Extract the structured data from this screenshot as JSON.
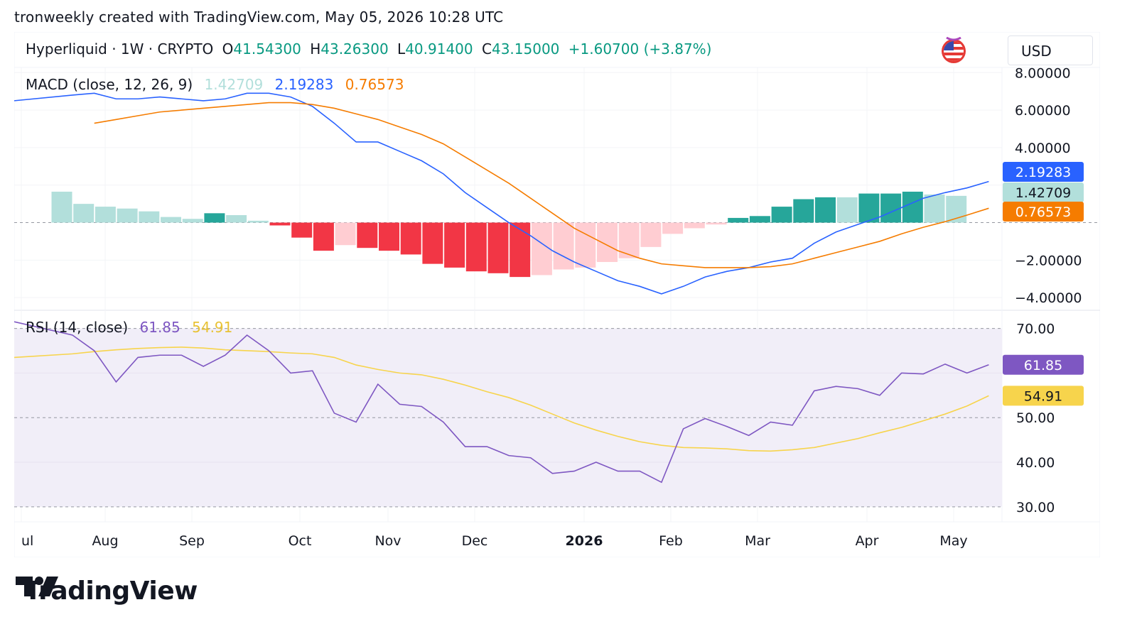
{
  "credit": "tronweekly created with TradingView.com, May 05, 2026 10:28 UTC",
  "header": {
    "symbol": "Hyperliquid · 1W · CRYPTO",
    "open_label": "O",
    "open": "41.54300",
    "high_label": "H",
    "high": "43.26300",
    "low_label": "L",
    "low": "40.91400",
    "close_label": "C",
    "close": "43.15000",
    "change": "+1.60700 (+3.87%)"
  },
  "currency": "USD",
  "flag_icon": "us-flag-icon",
  "brand": "TradingView",
  "colors": {
    "macd_line": "#2962ff",
    "signal_line": "#f57c00",
    "hist_pos_strong": "#26a69a",
    "hist_pos_weak": "#b2dfdb",
    "hist_neg_strong": "#f23645",
    "hist_neg_weak": "#ffcdd2",
    "rsi_line": "#7e57c2",
    "rsi_ma": "#f7d44c",
    "rsi_band": "#f1eef8",
    "up": "#089981"
  },
  "chart_data": [
    {
      "type": "line",
      "title": "MACD (close, 12, 26, 9)",
      "legend_values": {
        "histogram": "1.42709",
        "macd": "2.19283",
        "signal": "0.76573"
      },
      "x_labels": [
        "ul",
        "Aug",
        "Sep",
        "Oct",
        "Nov",
        "Dec",
        "2026",
        "Feb",
        "Mar",
        "Apr",
        "May"
      ],
      "y_ticks": [
        "8.00000",
        "6.00000",
        "4.00000",
        "−2.00000",
        "−4.00000"
      ],
      "y_tick_values": [
        8,
        6,
        4,
        -2,
        -4
      ],
      "ylim": [
        -4.6,
        8.2
      ],
      "macd": [
        6.5,
        6.8,
        6.9,
        6.6,
        6.6,
        6.7,
        6.6,
        6.5,
        6.6,
        6.9,
        6.9,
        6.7,
        6.2,
        5.3,
        4.3,
        4.3,
        3.8,
        3.3,
        2.6,
        1.6,
        0.8,
        0.0,
        -0.7,
        -1.5,
        -2.1,
        -2.6,
        -3.1,
        -3.4,
        -3.8,
        -3.4,
        -2.9,
        -2.6,
        -2.4,
        -2.1,
        -1.9,
        -1.1,
        -0.5,
        -0.1,
        0.3,
        0.8,
        1.3,
        1.6,
        1.85,
        2.19283
      ],
      "signal": [
        null,
        null,
        5.3,
        5.5,
        5.7,
        5.9,
        6.0,
        6.1,
        6.2,
        6.3,
        6.4,
        6.4,
        6.3,
        6.1,
        5.8,
        5.5,
        5.1,
        4.7,
        4.2,
        3.5,
        2.8,
        2.1,
        1.3,
        0.5,
        -0.3,
        -0.9,
        -1.5,
        -1.9,
        -2.2,
        -2.3,
        -2.4,
        -2.4,
        -2.4,
        -2.35,
        -2.2,
        -1.9,
        -1.6,
        -1.3,
        -1.0,
        -0.6,
        -0.25,
        0.05,
        0.4,
        0.76573
      ],
      "histogram": [
        1.65,
        1.0,
        0.85,
        0.75,
        0.6,
        0.3,
        0.2,
        0.5,
        0.4,
        0.1,
        -0.15,
        -0.8,
        -1.5,
        -1.2,
        -1.35,
        -1.5,
        -1.7,
        -2.2,
        -2.4,
        -2.6,
        -2.7,
        -2.9,
        -2.8,
        -2.5,
        -2.4,
        -2.1,
        -1.9,
        -1.3,
        -0.6,
        -0.3,
        -0.1,
        0.25,
        0.35,
        0.85,
        1.25,
        1.35,
        1.35,
        1.55,
        1.55,
        1.65,
        1.5,
        1.42709
      ],
      "histogram_colors": [
        "w",
        "w",
        "w",
        "w",
        "w",
        "w",
        "w",
        "s",
        "w",
        "w",
        "s",
        "s",
        "s",
        "w",
        "s",
        "s",
        "s",
        "s",
        "s",
        "s",
        "s",
        "s",
        "w",
        "w",
        "w",
        "w",
        "w",
        "w",
        "w",
        "w",
        "w",
        "s",
        "s",
        "s",
        "s",
        "s",
        "w",
        "s",
        "s",
        "s",
        "w",
        "w"
      ]
    },
    {
      "type": "line",
      "title": "RSI (14, close)",
      "legend_values": {
        "rsi": "61.85",
        "ma": "54.91"
      },
      "y_ticks": [
        "70.00",
        "50.00",
        "40.00",
        "30.00"
      ],
      "y_tick_values": [
        70,
        50,
        40,
        30
      ],
      "ylim": [
        29.5,
        72
      ],
      "band": [
        30,
        70
      ],
      "rsi": [
        71.5,
        68.5,
        65,
        58,
        63.5,
        64,
        64,
        61.5,
        64,
        68.5,
        65,
        60,
        60.5,
        51,
        49,
        57.5,
        53,
        52.5,
        49,
        43.5,
        43.5,
        41.5,
        41,
        37.5,
        38,
        40,
        38,
        38,
        35.5,
        47.5,
        49.8,
        48,
        46,
        49,
        48.3,
        56,
        57,
        56.5,
        55,
        60,
        59.8,
        62,
        60,
        61.85
      ],
      "rsi_ma": [
        63.5,
        64.3,
        64.8,
        65.2,
        65.5,
        65.7,
        65.8,
        65.6,
        65.2,
        65,
        64.8,
        64.5,
        64.3,
        63.5,
        61.8,
        60.8,
        60,
        59.6,
        58.6,
        57.3,
        55.8,
        54.5,
        52.8,
        50.8,
        48.8,
        47.2,
        45.8,
        44.6,
        43.8,
        43.3,
        43.2,
        43.0,
        42.6,
        42.5,
        42.8,
        43.3,
        44.3,
        45.3,
        46.6,
        47.8,
        49.3,
        50.8,
        52.6,
        54.91
      ]
    }
  ],
  "price_tags": {
    "macd": "2.19283",
    "histogram": "1.42709",
    "signal": "0.76573",
    "rsi": "61.85",
    "rsi_ma": "54.91"
  }
}
